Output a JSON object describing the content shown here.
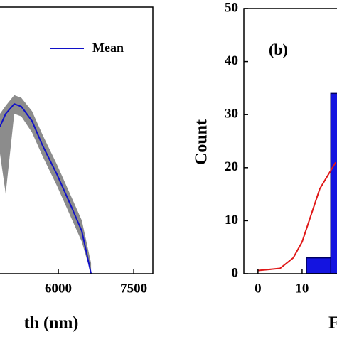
{
  "chart_data": [
    {
      "type": "line",
      "x_label": "th (nm)",
      "x": [
        4840,
        4953,
        5123,
        5264,
        5476,
        5689,
        5972,
        6255,
        6467,
        6651
      ],
      "series": [
        {
          "name": "Mean",
          "color": "#1010c8",
          "values": [
            0.552,
            0.6,
            0.637,
            0.627,
            0.573,
            0.48,
            0.373,
            0.253,
            0.16,
            0.0
          ]
        }
      ],
      "band": {
        "color": "#8c8c8c",
        "lower": [
          0.45,
          0.3,
          0.6,
          0.59,
          0.53,
          0.44,
          0.33,
          0.21,
          0.12,
          0.0
        ],
        "upper": [
          0.6,
          0.63,
          0.67,
          0.66,
          0.61,
          0.52,
          0.41,
          0.29,
          0.2,
          0.04
        ]
      },
      "xlim": [
        4840,
        7880
      ],
      "xticks": [
        6000,
        7500
      ],
      "ylim": [
        0,
        1
      ]
    },
    {
      "type": "histogram",
      "annotation": "(b)",
      "x_label": "F",
      "y_label": "Count",
      "bins": [
        11,
        16.5,
        22
      ],
      "counts": [
        3,
        34
      ],
      "color": "#1414e0",
      "fit": {
        "color": "#e01818",
        "x": [
          0,
          5,
          8,
          10,
          12,
          14,
          17.6
        ],
        "values": [
          0.6,
          1,
          3,
          6,
          11,
          16,
          21
        ]
      },
      "xlim": [
        -3.2,
        20
      ],
      "xticks": [
        0,
        10
      ],
      "ylim": [
        0,
        50
      ],
      "yticks": [
        0,
        10,
        20,
        30,
        40,
        50
      ]
    }
  ]
}
